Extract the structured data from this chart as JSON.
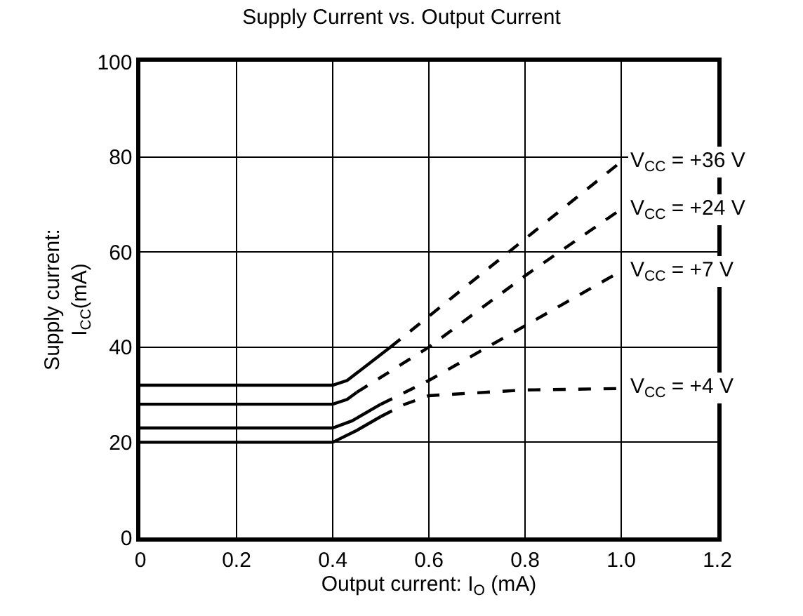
{
  "chart_data": {
    "type": "line",
    "title": "Supply Current vs. Output Current",
    "xlabel": "Output current: I$_{O}$ (mA)",
    "ylabel": "Supply current:\nI$_{CC}$(mA)",
    "xlim": [
      0,
      1.2
    ],
    "xticks": [
      0,
      0.2,
      0.4,
      0.6,
      0.8,
      {
        "value": 1,
        "label": "1.0"
      },
      1.2
    ],
    "ylim": [
      0,
      100
    ],
    "yticks": [
      0,
      20,
      40,
      60,
      80,
      100
    ],
    "grid": true,
    "legend": false,
    "marker": "none",
    "series": [
      {
        "color": "#000000",
        "line_style": "solid",
        "x": [
          0,
          0.4,
          0.43,
          0.52
        ],
        "values": [
          32,
          32,
          33,
          40
        ]
      },
      {
        "name": "V$_{CC}$ = +36 V",
        "color": "#000000",
        "line_style": "dashed",
        "x": [
          0.52,
          1.0
        ],
        "values": [
          40,
          79
        ]
      },
      {
        "color": "#000000",
        "line_style": "solid",
        "x": [
          0,
          0.4,
          0.43,
          0.45
        ],
        "values": [
          28,
          28,
          29,
          30.5
        ]
      },
      {
        "name": "V$_{CC}$ = +24 V",
        "color": "#000000",
        "line_style": "dashed",
        "x": [
          0.45,
          0.6,
          0.8,
          1.0
        ],
        "values": [
          30.5,
          40,
          55,
          69
        ]
      },
      {
        "color": "#000000",
        "line_style": "solid",
        "x": [
          0,
          0.4,
          0.44,
          0.5
        ],
        "values": [
          23,
          23,
          24.5,
          28
        ]
      },
      {
        "name": "V$_{CC}$ = +7 V",
        "color": "#000000",
        "line_style": "dashed",
        "x": [
          0.5,
          0.6,
          0.8,
          1.0
        ],
        "values": [
          28,
          33,
          44.5,
          56
        ]
      },
      {
        "color": "#000000",
        "line_style": "solid",
        "x": [
          0,
          0.4,
          0.45,
          0.5
        ],
        "values": [
          20,
          20,
          22.5,
          25.4
        ]
      },
      {
        "name": "V$_{CC}$ = +4 V",
        "color": "#000000",
        "line_style": "dashed",
        "x": [
          0.5,
          0.55,
          0.6,
          0.8,
          1.0
        ],
        "values": [
          25.4,
          28,
          29.8,
          31,
          31.3
        ]
      }
    ]
  }
}
